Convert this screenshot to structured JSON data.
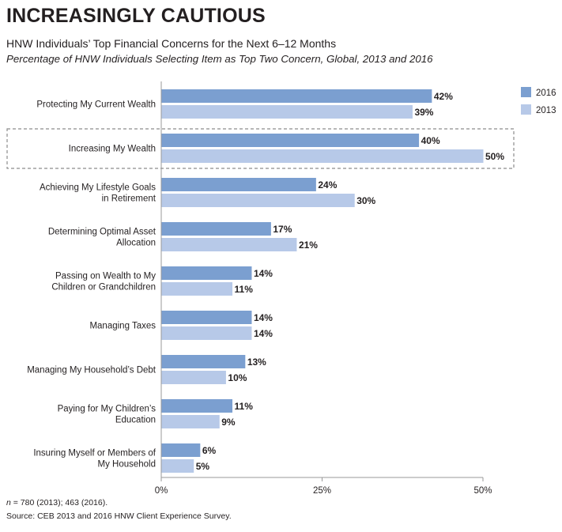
{
  "headline": "INCREASINGLY CAUTIOUS",
  "subtitle": "HNW Individuals’ Top Financial Concerns for the Next 6–12 Months",
  "subtitle_italic": "Percentage of HNW Individuals Selecting Item as Top Two Concern, Global, 2013 and 2016",
  "footnote": {
    "n_symbol": "n",
    "n_text": " = 780 (2013); 463 (2016).",
    "source": "Source: CEB 2013 and 2016 HNW Client Experience Survey."
  },
  "colors": {
    "series_2016": "#7b9fd0",
    "series_2013": "#b7c9e8",
    "highlight_border": "#8c8c8c"
  },
  "chart_data": {
    "type": "bar",
    "orientation": "horizontal",
    "categories": [
      [
        "Protecting My Current Wealth"
      ],
      [
        "Increasing My Wealth"
      ],
      [
        "Achieving My Lifestyle Goals",
        "in Retirement"
      ],
      [
        "Determining Optimal Asset",
        "Allocation"
      ],
      [
        "Passing on Wealth to My",
        "Children or Grandchildren"
      ],
      [
        "Managing Taxes"
      ],
      [
        "Managing My Household’s Debt"
      ],
      [
        "Paying for My Children’s",
        "Education"
      ],
      [
        "Insuring Myself or Members of",
        "My Household"
      ]
    ],
    "series": [
      {
        "name": "2016",
        "values": [
          42,
          40,
          24,
          17,
          14,
          14,
          13,
          11,
          6
        ],
        "labels": [
          "42%",
          "40%",
          "24%",
          "17%",
          "14%",
          "14%",
          "13%",
          "11%",
          "6%"
        ]
      },
      {
        "name": "2013",
        "values": [
          39,
          50,
          30,
          21,
          11,
          14,
          10,
          9,
          5
        ],
        "labels": [
          "39%",
          "50%",
          "30%",
          "21%",
          "11%",
          "14%",
          "10%",
          "9%",
          "5%"
        ]
      }
    ],
    "xlim": [
      0,
      50
    ],
    "xticks": [
      {
        "value": 0,
        "label": "0%"
      },
      {
        "value": 25,
        "label": "25%"
      },
      {
        "value": 50,
        "label": "50%"
      }
    ],
    "highlighted_category_index": 1,
    "legend_position": "top-right",
    "grid": false
  }
}
